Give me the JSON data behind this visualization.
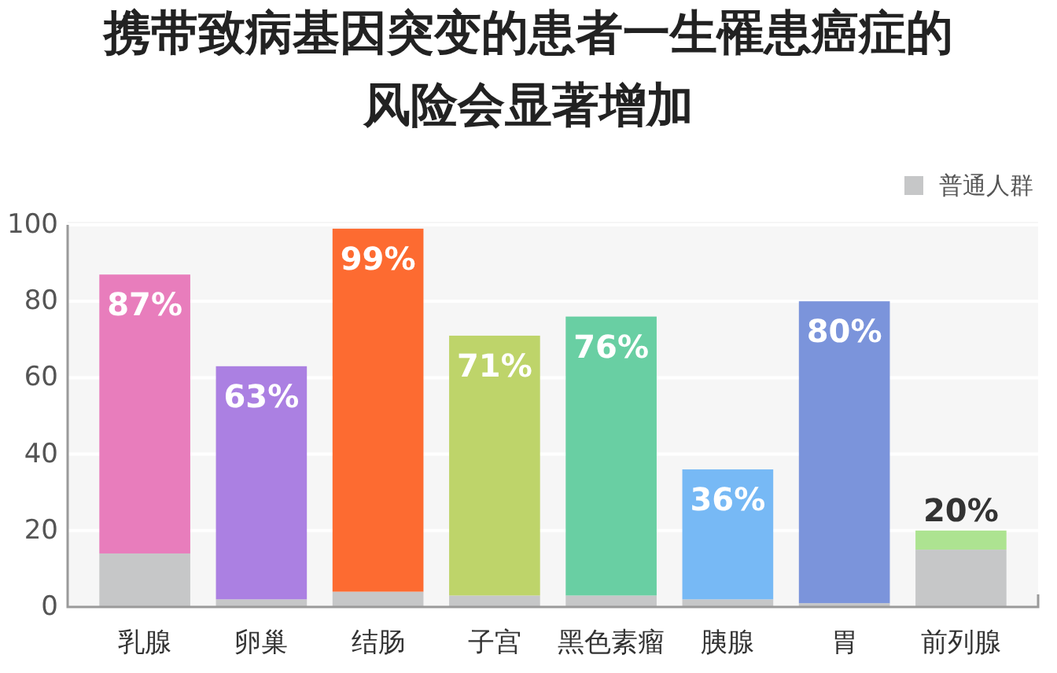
{
  "chart_data": {
    "type": "bar",
    "title": "携带致病基因突变的患者一生罹患癌症的风险会显著增加",
    "categories": [
      "乳腺",
      "卵巢",
      "结肠",
      "子宫",
      "黑色素瘤",
      "胰腺",
      "胃",
      "前列腺"
    ],
    "stacked": true,
    "series": [
      {
        "name": "普通人群",
        "color": "#c6c7c8",
        "values": [
          14,
          2,
          4,
          3,
          3,
          2,
          1,
          15
        ]
      },
      {
        "values": [
          73,
          61,
          95,
          68,
          73,
          34,
          79,
          5
        ],
        "colors": [
          "#e87dbc",
          "#ab80e2",
          "#fd6b31",
          "#bed46a",
          "#69cfa3",
          "#77b9f5",
          "#7b94db",
          "#ade391"
        ]
      }
    ],
    "totals": [
      "87%",
      "63%",
      "99%",
      "71%",
      "76%",
      "36%",
      "80%",
      "20%"
    ],
    "ylim": [
      0,
      100
    ],
    "yticks": [
      0,
      20,
      40,
      60,
      80,
      100
    ],
    "grid": "y",
    "legend": "top right"
  }
}
